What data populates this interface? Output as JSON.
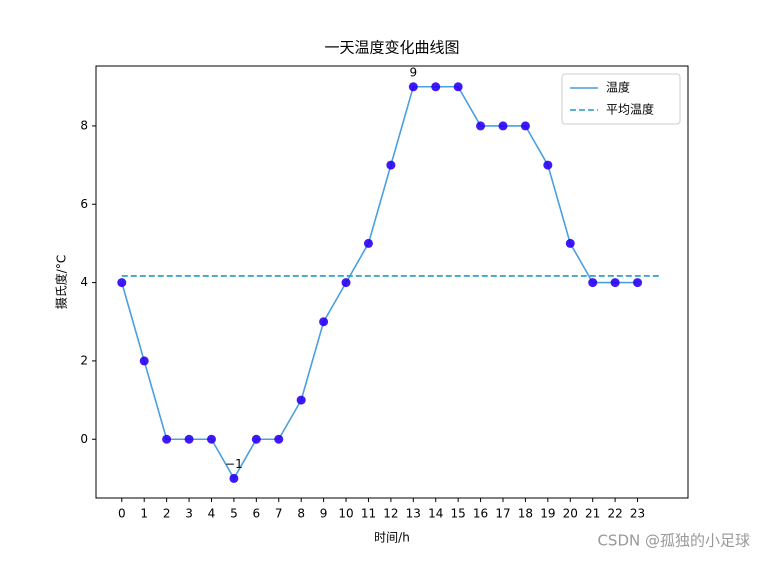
{
  "chart_data": {
    "type": "line",
    "title": "一天温度变化曲线图",
    "x_label": "时间/h",
    "y_label": "摄氏度/°C",
    "x": [
      0,
      1,
      2,
      3,
      4,
      5,
      6,
      7,
      8,
      9,
      10,
      11,
      12,
      13,
      14,
      15,
      16,
      17,
      18,
      19,
      20,
      21,
      22,
      23
    ],
    "series": [
      {
        "name": "温度",
        "color": "#4a9fe0",
        "style": "solid",
        "markers": "#2a00f5",
        "values": [
          4,
          2,
          0,
          0,
          0,
          -1,
          0,
          0,
          1,
          3,
          4,
          5,
          7,
          9,
          9,
          9,
          8,
          8,
          8,
          7,
          5,
          4,
          4,
          4
        ]
      },
      {
        "name": "平均温度",
        "color": "#1f9bc8",
        "style": "dashed",
        "x": [
          0,
          24
        ],
        "values": [
          4.17,
          4.17
        ]
      }
    ],
    "annotations": [
      {
        "text": "9",
        "x": 13,
        "y": 9
      },
      {
        "text": "−1",
        "x": 5,
        "y": -1
      }
    ],
    "xlim": [
      -1.15,
      25.25
    ],
    "ylim": [
      -1.5,
      9.53
    ],
    "xticks": [
      0,
      1,
      2,
      3,
      4,
      5,
      6,
      7,
      8,
      9,
      10,
      11,
      12,
      13,
      14,
      15,
      16,
      17,
      18,
      19,
      20,
      21,
      22,
      23
    ],
    "yticks": [
      0,
      2,
      4,
      6,
      8
    ],
    "legend": "upper right"
  },
  "watermark": "CSDN @孤独的小足球"
}
